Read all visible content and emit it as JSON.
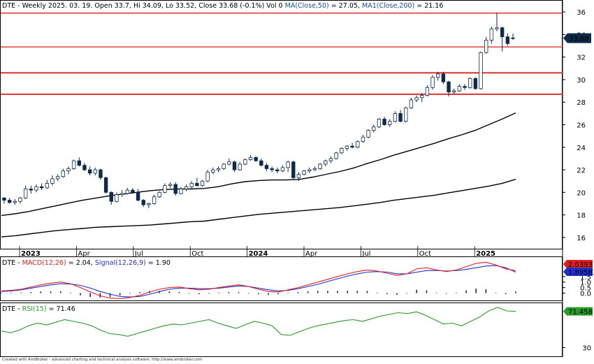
{
  "header": {
    "ticker": "DTE",
    "info": "Weekly 2025. 03. 19. Open 33.7, Hi 34.09, Lo 33.52, Close 33.68 (-0.1%) Vol 0",
    "ma50_label": "MA(Close,50)",
    "ma50_value": "= 27.05,",
    "ma200_label": "MA1(Close,200)",
    "ma200_value": "= 21.16"
  },
  "colors": {
    "up_candle": "#ffffff",
    "down_candle": "#0d2a4a",
    "support_resistance": "#e03030",
    "moving_average": "#000000",
    "macd": "#e02020",
    "signal": "#2030d0",
    "rsi": "#2a9a2a",
    "last_price_tag": "#0d2a4a"
  },
  "chart_data": [
    {
      "type": "candlestick",
      "title": "DTE - Weekly",
      "ylim": [
        15,
        37
      ],
      "y_ticks": [
        16,
        18,
        20,
        22,
        24,
        26,
        28,
        30,
        32,
        34,
        36
      ],
      "x_ticks": [
        "2023",
        "Apr",
        "Jul",
        "Oct",
        "2024",
        "Apr",
        "Jul",
        "Oct",
        "2025"
      ],
      "horizontal_levels": [
        35.9,
        32.9,
        30.6,
        28.7
      ],
      "last_price_label": "33.68",
      "ohlc": [
        [
          19.5,
          19.6,
          19.0,
          19.3
        ],
        [
          19.3,
          19.5,
          19.0,
          19.1
        ],
        [
          19.1,
          19.4,
          18.9,
          19.2
        ],
        [
          19.2,
          19.6,
          19.0,
          19.5
        ],
        [
          19.5,
          20.6,
          19.4,
          20.3
        ],
        [
          20.3,
          20.6,
          19.9,
          20.2
        ],
        [
          20.2,
          20.7,
          20.0,
          20.5
        ],
        [
          20.5,
          20.8,
          20.2,
          20.4
        ],
        [
          20.4,
          21.1,
          20.3,
          20.8
        ],
        [
          20.8,
          21.5,
          20.6,
          21.2
        ],
        [
          21.2,
          21.6,
          21.0,
          21.4
        ],
        [
          21.4,
          22.1,
          21.3,
          21.9
        ],
        [
          21.9,
          22.3,
          21.6,
          22.1
        ],
        [
          22.1,
          22.9,
          22.0,
          22.8
        ],
        [
          22.8,
          23.1,
          22.3,
          22.4
        ],
        [
          22.4,
          22.6,
          21.9,
          22.0
        ],
        [
          22.0,
          22.3,
          21.5,
          21.7
        ],
        [
          21.7,
          22.2,
          21.5,
          22.0
        ],
        [
          22.0,
          22.1,
          21.1,
          21.3
        ],
        [
          21.3,
          21.4,
          19.9,
          20.0
        ],
        [
          20.0,
          20.1,
          18.9,
          19.2
        ],
        [
          19.2,
          20.0,
          19.1,
          19.8
        ],
        [
          19.8,
          20.2,
          19.6,
          19.9
        ],
        [
          19.9,
          20.4,
          19.8,
          20.2
        ],
        [
          20.2,
          20.4,
          19.9,
          20.0
        ],
        [
          20.0,
          20.3,
          19.2,
          19.3
        ],
        [
          19.3,
          19.4,
          18.7,
          18.9
        ],
        [
          18.9,
          19.1,
          18.6,
          19.0
        ],
        [
          19.0,
          19.8,
          18.9,
          19.6
        ],
        [
          19.6,
          20.1,
          19.5,
          20.0
        ],
        [
          20.0,
          20.8,
          19.9,
          20.6
        ],
        [
          20.6,
          20.9,
          20.4,
          20.7
        ],
        [
          20.7,
          20.9,
          19.7,
          19.9
        ],
        [
          19.9,
          20.5,
          19.8,
          20.3
        ],
        [
          20.3,
          20.7,
          20.1,
          20.5
        ],
        [
          20.5,
          21.0,
          20.3,
          20.8
        ],
        [
          20.8,
          21.3,
          20.5,
          20.6
        ],
        [
          20.6,
          21.1,
          20.5,
          21.0
        ],
        [
          21.0,
          22.0,
          20.9,
          21.8
        ],
        [
          21.8,
          22.2,
          21.6,
          22.0
        ],
        [
          22.0,
          22.3,
          21.8,
          22.1
        ],
        [
          22.1,
          22.6,
          22.0,
          22.5
        ],
        [
          22.5,
          23.0,
          22.4,
          22.7
        ],
        [
          22.7,
          22.8,
          21.8,
          22.0
        ],
        [
          22.0,
          22.7,
          21.9,
          22.5
        ],
        [
          22.5,
          23.0,
          22.4,
          22.9
        ],
        [
          22.9,
          23.3,
          22.8,
          23.1
        ],
        [
          23.1,
          23.2,
          22.7,
          22.8
        ],
        [
          22.8,
          23.0,
          22.3,
          22.4
        ],
        [
          22.4,
          22.6,
          21.9,
          22.1
        ],
        [
          22.1,
          22.3,
          21.8,
          22.0
        ],
        [
          22.0,
          22.2,
          21.7,
          21.9
        ],
        [
          21.9,
          22.4,
          21.8,
          22.2
        ],
        [
          22.2,
          22.8,
          21.8,
          22.7
        ],
        [
          22.7,
          22.8,
          21.1,
          21.3
        ],
        [
          21.3,
          21.8,
          21.0,
          21.6
        ],
        [
          21.6,
          22.0,
          21.5,
          21.9
        ],
        [
          21.9,
          22.2,
          21.7,
          22.0
        ],
        [
          22.0,
          22.3,
          21.9,
          22.1
        ],
        [
          22.1,
          22.6,
          22.0,
          22.5
        ],
        [
          22.5,
          22.9,
          22.3,
          22.8
        ],
        [
          22.8,
          23.2,
          22.6,
          23.0
        ],
        [
          23.0,
          23.6,
          22.9,
          23.5
        ],
        [
          23.5,
          24.0,
          23.4,
          23.9
        ],
        [
          23.9,
          24.2,
          23.7,
          24.1
        ],
        [
          24.1,
          24.4,
          23.9,
          24.0
        ],
        [
          24.0,
          24.6,
          23.9,
          24.5
        ],
        [
          24.5,
          25.1,
          24.4,
          24.9
        ],
        [
          24.9,
          25.6,
          24.8,
          25.5
        ],
        [
          25.5,
          26.0,
          25.3,
          25.8
        ],
        [
          25.8,
          26.6,
          25.7,
          26.5
        ],
        [
          26.5,
          26.7,
          25.9,
          26.0
        ],
        [
          26.0,
          26.5,
          25.8,
          26.3
        ],
        [
          26.3,
          27.2,
          26.2,
          27.0
        ],
        [
          27.0,
          27.3,
          26.2,
          26.3
        ],
        [
          26.3,
          27.6,
          26.2,
          27.5
        ],
        [
          27.5,
          28.4,
          27.4,
          28.2
        ],
        [
          28.2,
          28.6,
          28.0,
          28.4
        ],
        [
          28.4,
          28.8,
          28.0,
          28.6
        ],
        [
          28.6,
          29.5,
          28.5,
          29.3
        ],
        [
          29.3,
          30.4,
          29.1,
          30.2
        ],
        [
          30.2,
          30.7,
          29.9,
          30.5
        ],
        [
          30.5,
          30.7,
          29.6,
          29.8
        ],
        [
          29.8,
          29.9,
          28.5,
          28.9
        ],
        [
          28.9,
          29.2,
          28.7,
          29.0
        ],
        [
          29.0,
          29.6,
          28.9,
          29.4
        ],
        [
          29.4,
          29.6,
          29.1,
          29.3
        ],
        [
          29.3,
          30.2,
          29.2,
          30.1
        ],
        [
          30.1,
          30.2,
          29.1,
          29.2
        ],
        [
          29.2,
          32.5,
          29.1,
          32.4
        ],
        [
          32.4,
          33.8,
          32.3,
          33.5
        ],
        [
          33.5,
          34.7,
          33.2,
          34.5
        ],
        [
          34.5,
          35.9,
          34.3,
          34.6
        ],
        [
          34.6,
          34.7,
          32.5,
          33.8
        ],
        [
          33.8,
          34.1,
          33.0,
          33.2
        ],
        [
          33.7,
          34.09,
          33.52,
          33.68
        ]
      ],
      "ma50": [
        17.95,
        18.1,
        18.3,
        18.55,
        18.8,
        19.05,
        19.3,
        19.5,
        19.7,
        19.85,
        20.0,
        20.15,
        20.25,
        20.3,
        20.3,
        20.35,
        20.5,
        20.75,
        20.95,
        21.05,
        21.1,
        21.1,
        21.15,
        21.35,
        21.6,
        21.85,
        22.15,
        22.55,
        22.9,
        23.3,
        23.65,
        24.0,
        24.35,
        24.75,
        25.1,
        25.5,
        26.0,
        26.5,
        27.05
      ],
      "ma200": [
        16.05,
        16.15,
        16.3,
        16.45,
        16.6,
        16.7,
        16.8,
        16.9,
        16.95,
        17.0,
        17.05,
        17.1,
        17.2,
        17.3,
        17.4,
        17.45,
        17.6,
        17.75,
        17.9,
        18.05,
        18.15,
        18.25,
        18.35,
        18.45,
        18.55,
        18.65,
        18.8,
        18.95,
        19.1,
        19.3,
        19.45,
        19.6,
        19.75,
        19.95,
        20.15,
        20.35,
        20.55,
        20.8,
        21.16
      ]
    },
    {
      "type": "line",
      "title": "MACD(12,26), Signal(12,26,9)",
      "series": [
        {
          "name": "MACD(12,26)",
          "values": [
            0.2,
            0.25,
            0.35,
            0.55,
            0.75,
            0.9,
            1.0,
            0.85,
            0.5,
            0.1,
            -0.25,
            -0.45,
            -0.5,
            -0.4,
            -0.2,
            0.1,
            0.35,
            0.5,
            0.55,
            0.4,
            0.3,
            0.35,
            0.5,
            0.65,
            0.75,
            0.6,
            0.35,
            0.15,
            0.1,
            0.3,
            0.5,
            0.75,
            1.0,
            1.25,
            1.5,
            1.75,
            1.95,
            2.1,
            2.0,
            1.8,
            1.6,
            1.75,
            2.2,
            2.3,
            2.1,
            1.95,
            2.1,
            2.4,
            2.7,
            2.8,
            2.55,
            2.2,
            2.04
          ]
        },
        {
          "name": "Signal(12,26,9)",
          "values": [
            0.15,
            0.2,
            0.3,
            0.45,
            0.6,
            0.75,
            0.85,
            0.82,
            0.7,
            0.45,
            0.15,
            -0.1,
            -0.3,
            -0.35,
            -0.3,
            -0.1,
            0.15,
            0.35,
            0.45,
            0.45,
            0.4,
            0.4,
            0.45,
            0.55,
            0.65,
            0.6,
            0.45,
            0.3,
            0.2,
            0.25,
            0.4,
            0.6,
            0.8,
            1.05,
            1.3,
            1.55,
            1.75,
            1.9,
            1.95,
            1.9,
            1.75,
            1.75,
            1.9,
            2.05,
            2.05,
            2.0,
            2.05,
            2.15,
            2.3,
            2.45,
            2.5,
            2.3,
            1.9
          ]
        },
        {
          "name": "Histogram",
          "values": [
            0.05,
            0.05,
            0.05,
            0.1,
            0.15,
            0.15,
            0.15,
            0.03,
            -0.2,
            -0.35,
            -0.4,
            -0.35,
            -0.2,
            -0.05,
            0.1,
            0.2,
            0.2,
            0.15,
            0.1,
            -0.05,
            -0.1,
            -0.05,
            0.05,
            0.1,
            0.1,
            0.0,
            -0.1,
            -0.15,
            -0.1,
            0.05,
            0.1,
            0.15,
            0.2,
            0.2,
            0.2,
            0.2,
            0.2,
            0.2,
            0.05,
            -0.1,
            -0.15,
            0.0,
            0.3,
            0.25,
            0.05,
            -0.05,
            0.05,
            0.25,
            0.4,
            0.35,
            0.05,
            -0.1,
            0.14
          ]
        }
      ],
      "ylim": [
        -0.6,
        3.2
      ],
      "y_ticks": [
        0.0,
        0.5,
        1.0,
        1.5
      ],
      "value_tags": [
        "2.0393",
        "1.89583"
      ]
    },
    {
      "type": "line",
      "title": "RSI(15)",
      "series": [
        {
          "name": "RSI(15)",
          "values": [
            49,
            47,
            50,
            55,
            58,
            56,
            59,
            62,
            60,
            58,
            55,
            50,
            46,
            45,
            43,
            46,
            49,
            52,
            55,
            57,
            56,
            58,
            60,
            62,
            58,
            55,
            52,
            56,
            60,
            58,
            55,
            45,
            44,
            48,
            52,
            55,
            57,
            59,
            61,
            62,
            60,
            63,
            66,
            68,
            70,
            69,
            71,
            67,
            62,
            57,
            58,
            55,
            60,
            65,
            72,
            76,
            72,
            71.46
          ]
        }
      ],
      "ylim": [
        20,
        80
      ],
      "y_ticks": [
        30
      ],
      "value_tag": "71.458"
    }
  ],
  "footer": "Created with AmiBroker - advanced charting and technical analysis software. http://www.amibroker.com"
}
